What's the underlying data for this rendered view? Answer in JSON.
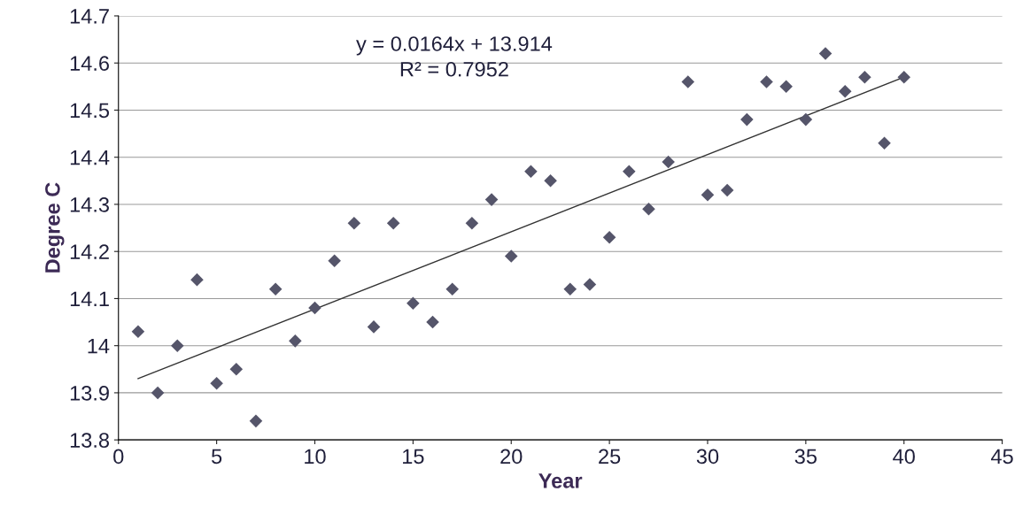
{
  "chart_data": {
    "type": "scatter",
    "xlabel": "Year",
    "ylabel": "Degree C",
    "xlim": [
      0,
      45
    ],
    "xticks": [
      0,
      5,
      10,
      15,
      20,
      25,
      30,
      35,
      40,
      45
    ],
    "ylim": [
      13.8,
      14.7
    ],
    "yticks": [
      {
        "value": 13.8,
        "label": "13.8"
      },
      {
        "value": 13.9,
        "label": "13.9"
      },
      {
        "value": 14,
        "label": "14"
      },
      {
        "value": 14.1,
        "label": "14.1"
      },
      {
        "value": 14.2,
        "label": "14.2"
      },
      {
        "value": 14.3,
        "label": "14.3"
      },
      {
        "value": 14.4,
        "label": "14.4"
      },
      {
        "value": 14.5,
        "label": "14.5"
      },
      {
        "value": 14.6,
        "label": "14.6"
      },
      {
        "value": 14.7,
        "label": "14.7"
      }
    ],
    "grid": "y",
    "marker": "diamond",
    "series": [
      {
        "color": "#55556a",
        "x": [
          1,
          2,
          3,
          4,
          5,
          6,
          7,
          8,
          9,
          10,
          11,
          12,
          13,
          14,
          15,
          16,
          17,
          18,
          19,
          20,
          21,
          22,
          23,
          24,
          25,
          26,
          27,
          28,
          29,
          30,
          31,
          32,
          33,
          34,
          35,
          36,
          37,
          38,
          39,
          40
        ],
        "values": [
          14.03,
          13.9,
          14.0,
          14.14,
          13.92,
          13.95,
          13.84,
          14.12,
          14.01,
          14.08,
          14.18,
          14.26,
          14.04,
          14.26,
          14.09,
          14.05,
          14.12,
          14.26,
          14.31,
          14.19,
          14.37,
          14.35,
          14.12,
          14.13,
          14.23,
          14.37,
          14.29,
          14.39,
          14.56,
          14.32,
          14.33,
          14.48,
          14.56,
          14.55,
          14.48,
          14.62,
          14.54,
          14.57,
          14.43,
          14.57
        ]
      },
      {
        "type": "line",
        "marker": "none",
        "color": "#333333",
        "x": [
          1,
          40
        ],
        "values": [
          13.93,
          14.57
        ]
      }
    ],
    "annotations": [
      "y = 0.0164x + 13.914",
      "R² = 0.7952"
    ]
  }
}
